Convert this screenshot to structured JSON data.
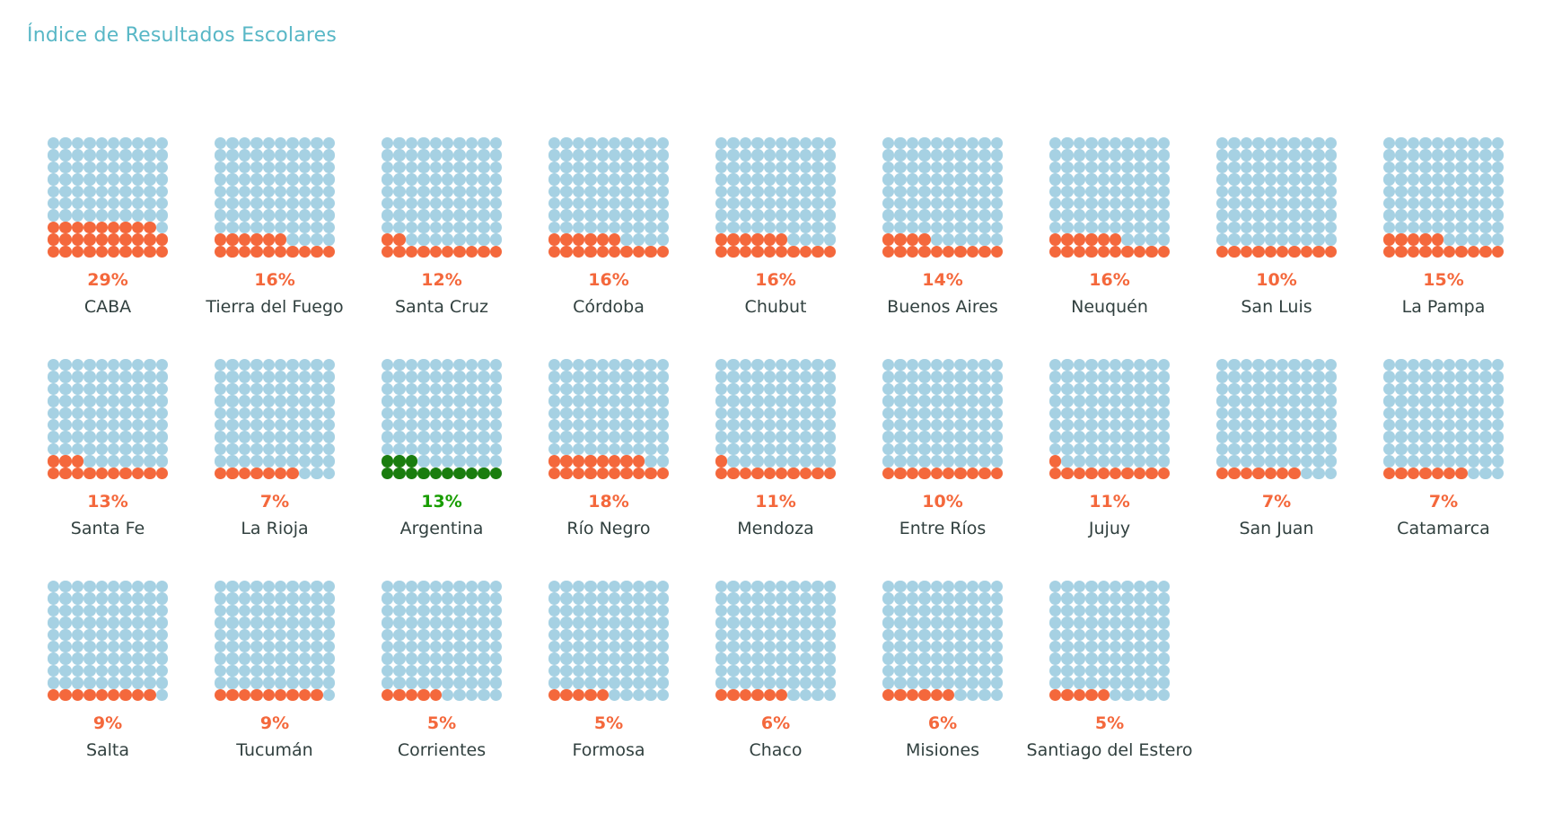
{
  "title": "Índice de Resultados Escolares",
  "colors": {
    "title_text": "#58B7C6",
    "empty_dot": "#A6D1E3",
    "filled_dot": "#F4683C",
    "highlight_dot": "#1A7D0E",
    "pct_orange": "#F4683C",
    "pct_green": "#189D00",
    "province_text": "#31403F"
  },
  "chart_data": {
    "type": "waffle-grid",
    "title": "Índice de Resultados Escolares",
    "unit": "percent",
    "grid_size": "10x10",
    "dots_per_chart": 100,
    "fill_order": "bottom-left, row by row, left to right",
    "columns_per_row": 9,
    "items": [
      {
        "name": "CABA",
        "value": 29,
        "pct_label": "29%",
        "highlight": false
      },
      {
        "name": "Tierra del Fuego",
        "value": 16,
        "pct_label": "16%",
        "highlight": false
      },
      {
        "name": "Santa Cruz",
        "value": 12,
        "pct_label": "12%",
        "highlight": false
      },
      {
        "name": "Córdoba",
        "value": 16,
        "pct_label": "16%",
        "highlight": false
      },
      {
        "name": "Chubut",
        "value": 16,
        "pct_label": "16%",
        "highlight": false
      },
      {
        "name": "Buenos Aires",
        "value": 14,
        "pct_label": "14%",
        "highlight": false
      },
      {
        "name": "Neuquén",
        "value": 16,
        "pct_label": "16%",
        "highlight": false
      },
      {
        "name": "San Luis",
        "value": 10,
        "pct_label": "10%",
        "highlight": false
      },
      {
        "name": "La Pampa",
        "value": 15,
        "pct_label": "15%",
        "highlight": false
      },
      {
        "name": "Santa Fe",
        "value": 13,
        "pct_label": "13%",
        "highlight": false
      },
      {
        "name": "La Rioja",
        "value": 7,
        "pct_label": "7%",
        "highlight": false
      },
      {
        "name": "Argentina",
        "value": 13,
        "pct_label": "13%",
        "highlight": true
      },
      {
        "name": "Río Negro",
        "value": 18,
        "pct_label": "18%",
        "highlight": false
      },
      {
        "name": "Mendoza",
        "value": 11,
        "pct_label": "11%",
        "highlight": false
      },
      {
        "name": "Entre Ríos",
        "value": 10,
        "pct_label": "10%",
        "highlight": false
      },
      {
        "name": "Jujuy",
        "value": 11,
        "pct_label": "11%",
        "highlight": false
      },
      {
        "name": "San Juan",
        "value": 7,
        "pct_label": "7%",
        "highlight": false
      },
      {
        "name": "Catamarca",
        "value": 7,
        "pct_label": "7%",
        "highlight": false
      },
      {
        "name": "Salta",
        "value": 9,
        "pct_label": "9%",
        "highlight": false
      },
      {
        "name": "Tucumán",
        "value": 9,
        "pct_label": "9%",
        "highlight": false
      },
      {
        "name": "Corrientes",
        "value": 5,
        "pct_label": "5%",
        "highlight": false
      },
      {
        "name": "Formosa",
        "value": 5,
        "pct_label": "5%",
        "highlight": false
      },
      {
        "name": "Chaco",
        "value": 6,
        "pct_label": "6%",
        "highlight": false
      },
      {
        "name": "Misiones",
        "value": 6,
        "pct_label": "6%",
        "highlight": false
      },
      {
        "name": "Santiago del Estero",
        "value": 5,
        "pct_label": "5%",
        "highlight": false
      }
    ]
  }
}
